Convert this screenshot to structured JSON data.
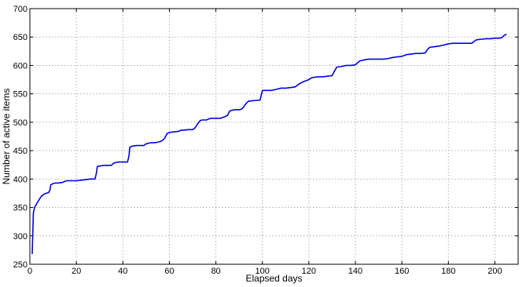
{
  "chart_data": {
    "type": "line",
    "title": "",
    "xlabel": "Elapsed days",
    "ylabel": "Number of active items",
    "xlim": [
      0,
      210
    ],
    "ylim": [
      250,
      700
    ],
    "grid": true,
    "x_ticks": [
      0,
      20,
      40,
      60,
      80,
      100,
      120,
      140,
      160,
      180,
      200
    ],
    "y_ticks": [
      250,
      300,
      350,
      400,
      450,
      500,
      550,
      600,
      650,
      700
    ],
    "series": [
      {
        "color": "#0000ee",
        "x": [
          1,
          1.5,
          2,
          3,
          4,
          5,
          6,
          7,
          8,
          8.6,
          9,
          10,
          11,
          12,
          14,
          15,
          16,
          18,
          20,
          22,
          24,
          26,
          28,
          28.6,
          29,
          30,
          32,
          34,
          35,
          36,
          38,
          40,
          42,
          42.6,
          43,
          44,
          46,
          48,
          49,
          50,
          52,
          54,
          56,
          57,
          58,
          59,
          60,
          62,
          64,
          65,
          66,
          68,
          70,
          71,
          72,
          73,
          74,
          76,
          77,
          78,
          80,
          82,
          84,
          85,
          86,
          88,
          90,
          91,
          92,
          93,
          94,
          96,
          99,
          100,
          102,
          104,
          106,
          108,
          110,
          112,
          114,
          115,
          116,
          118,
          120,
          121,
          122,
          124,
          126,
          128,
          130,
          131,
          132,
          134,
          136,
          138,
          140,
          141,
          142,
          144,
          146,
          148,
          150,
          152,
          154,
          156,
          158,
          160,
          162,
          164,
          166,
          168,
          170,
          171,
          172,
          174,
          176,
          178,
          180,
          182,
          184,
          186,
          188,
          190,
          191,
          192,
          194,
          196,
          198,
          200,
          202,
          203,
          204,
          205
        ],
        "values": [
          268,
          340,
          350,
          357,
          364,
          370,
          373,
          375,
          376,
          380,
          390,
          392,
          393,
          393,
          394,
          396,
          397,
          397,
          397,
          398,
          399,
          400,
          400,
          410,
          422,
          423,
          424,
          424,
          424,
          428,
          430,
          430,
          430,
          440,
          456,
          458,
          459,
          459,
          459,
          462,
          464,
          464,
          466,
          468,
          472,
          480,
          482,
          483,
          484,
          486,
          486,
          487,
          487,
          490,
          496,
          502,
          504,
          504,
          506,
          507,
          507,
          507,
          510,
          512,
          520,
          522,
          522,
          523,
          527,
          533,
          537,
          538,
          539,
          556,
          556,
          556,
          558,
          560,
          560,
          561,
          562,
          565,
          568,
          572,
          575,
          578,
          579,
          580,
          580,
          581,
          582,
          590,
          597,
          598,
          600,
          600,
          601,
          605,
          608,
          610,
          611,
          611,
          611,
          611,
          612,
          614,
          615,
          616,
          619,
          620,
          621,
          621,
          622,
          628,
          632,
          633,
          634,
          636,
          638,
          639,
          639,
          639,
          639,
          639,
          642,
          645,
          646,
          647,
          647,
          648,
          648,
          649,
          653,
          655
        ]
      }
    ]
  }
}
